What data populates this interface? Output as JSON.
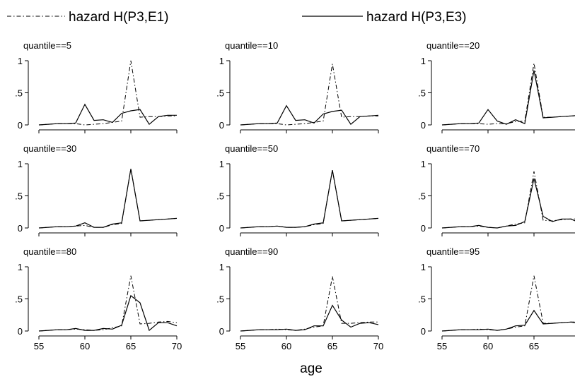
{
  "chart_data": {
    "type": "line",
    "xlabel": "age",
    "x": [
      55,
      56,
      57,
      58,
      59,
      60,
      61,
      62,
      63,
      64,
      65,
      66,
      67,
      68,
      69,
      70
    ],
    "xticks": [
      "55",
      "60",
      "65",
      "70"
    ],
    "yticks": [
      "0",
      ".5",
      "1"
    ],
    "xlim": [
      55,
      70
    ],
    "ylim": [
      0,
      1
    ],
    "legend_position": "top",
    "legend": [
      {
        "key": "e1",
        "label": "hazard H(P3,E1)",
        "style": "dash-dot"
      },
      {
        "key": "e3",
        "label": "hazard H(P3,E3)",
        "style": "solid"
      }
    ],
    "panels": [
      {
        "title": "quantile==5",
        "e1": [
          0,
          0.01,
          0.02,
          0.02,
          0.02,
          0,
          0.01,
          0.02,
          0.04,
          0.06,
          1.0,
          0.12,
          0.13,
          0.13,
          0.14,
          0.14
        ],
        "e3": [
          0,
          0.01,
          0.02,
          0.02,
          0.03,
          0.32,
          0.07,
          0.08,
          0.04,
          0.18,
          0.22,
          0.24,
          0.01,
          0.13,
          0.15,
          0.15
        ]
      },
      {
        "title": "quantile==10",
        "e1": [
          0,
          0.01,
          0.02,
          0.02,
          0.02,
          0,
          0.01,
          0.02,
          0.04,
          0.06,
          0.95,
          0.12,
          0.13,
          0.13,
          0.14,
          0.14
        ],
        "e3": [
          0,
          0.01,
          0.02,
          0.02,
          0.03,
          0.3,
          0.07,
          0.08,
          0.03,
          0.17,
          0.21,
          0.23,
          0.01,
          0.13,
          0.14,
          0.15
        ]
      },
      {
        "title": "quantile==20",
        "e1": [
          0,
          0.01,
          0.02,
          0.02,
          0.02,
          0.01,
          0.02,
          0.02,
          0.05,
          0.06,
          0.96,
          0.12,
          0.12,
          0.13,
          0.14,
          0.14
        ],
        "e3": [
          0,
          0.01,
          0.02,
          0.02,
          0.03,
          0.24,
          0.06,
          0.01,
          0.08,
          0.02,
          0.85,
          0.11,
          0.12,
          0.13,
          0.14,
          0.15
        ]
      },
      {
        "title": "quantile==30",
        "e1": [
          0,
          0.01,
          0.02,
          0.02,
          0.03,
          0.04,
          0.01,
          0.01,
          0.05,
          0.07,
          0.92,
          0.11,
          0.12,
          0.13,
          0.14,
          0.15
        ],
        "e3": [
          0,
          0.01,
          0.02,
          0.02,
          0.03,
          0.08,
          0.01,
          0.01,
          0.06,
          0.08,
          0.92,
          0.11,
          0.12,
          0.13,
          0.14,
          0.15
        ]
      },
      {
        "title": "quantile==50",
        "e1": [
          0,
          0.01,
          0.02,
          0.02,
          0.03,
          0.01,
          0.01,
          0.02,
          0.05,
          0.07,
          0.9,
          0.11,
          0.12,
          0.13,
          0.14,
          0.15
        ],
        "e3": [
          0,
          0.01,
          0.02,
          0.02,
          0.03,
          0.01,
          0.01,
          0.02,
          0.06,
          0.08,
          0.9,
          0.11,
          0.12,
          0.13,
          0.14,
          0.15
        ]
      },
      {
        "title": "quantile==70",
        "e1": [
          0,
          0.01,
          0.02,
          0.02,
          0.03,
          0.01,
          0,
          0.03,
          0.06,
          0.08,
          0.88,
          0.12,
          0.11,
          0.13,
          0.14,
          0.14
        ],
        "e3": [
          0,
          0.01,
          0.02,
          0.02,
          0.04,
          0.01,
          0,
          0.03,
          0.04,
          0.1,
          0.77,
          0.18,
          0.1,
          0.14,
          0.14,
          0.08
        ]
      },
      {
        "title": "quantile==80",
        "e1": [
          0,
          0.01,
          0.02,
          0.02,
          0.03,
          0.02,
          0.01,
          0.02,
          0.05,
          0.08,
          0.86,
          0.11,
          0.12,
          0.14,
          0.15,
          0.13
        ],
        "e3": [
          0,
          0.01,
          0.02,
          0.02,
          0.04,
          0.01,
          0.01,
          0.04,
          0.03,
          0.09,
          0.55,
          0.44,
          0.01,
          0.13,
          0.13,
          0.08
        ]
      },
      {
        "title": "quantile==90",
        "e1": [
          0,
          0.01,
          0.02,
          0.02,
          0.03,
          0.02,
          0.01,
          0.03,
          0.06,
          0.08,
          0.85,
          0.12,
          0.12,
          0.13,
          0.14,
          0.14
        ],
        "e3": [
          0,
          0.01,
          0.02,
          0.02,
          0.02,
          0.03,
          0.01,
          0.02,
          0.08,
          0.08,
          0.4,
          0.17,
          0.06,
          0.12,
          0.13,
          0.1
        ]
      },
      {
        "title": "quantile==95",
        "e1": [
          0,
          0.01,
          0.02,
          0.02,
          0.03,
          0.02,
          0.01,
          0.03,
          0.06,
          0.08,
          0.86,
          0.12,
          0.12,
          0.13,
          0.14,
          0.14
        ],
        "e3": [
          0,
          0.01,
          0.02,
          0.02,
          0.02,
          0.03,
          0.01,
          0.03,
          0.08,
          0.09,
          0.32,
          0.11,
          0.12,
          0.13,
          0.14,
          0.12
        ]
      }
    ]
  }
}
